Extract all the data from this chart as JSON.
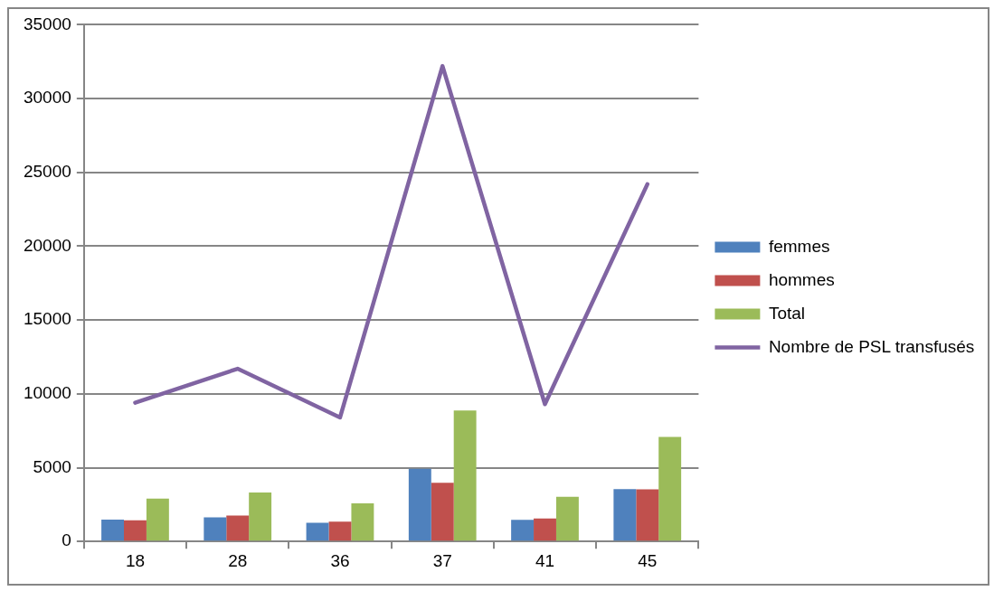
{
  "chart_data": {
    "type": "bar",
    "categories": [
      "18",
      "28",
      "36",
      "37",
      "41",
      "45"
    ],
    "series": [
      {
        "name": "femmes",
        "color": "#4f81bd",
        "values": [
          1480,
          1630,
          1270,
          4920,
          1460,
          3550
        ]
      },
      {
        "name": "hommes",
        "color": "#c0504d",
        "values": [
          1440,
          1750,
          1350,
          3970,
          1560,
          3530
        ]
      },
      {
        "name": "Total",
        "color": "#9bbb59",
        "values": [
          2910,
          3320,
          2580,
          8870,
          3020,
          7080
        ]
      },
      {
        "name": "Nombre de PSL transfusés",
        "type": "line",
        "color": "#8064a2",
        "values": [
          9400,
          11700,
          8400,
          32200,
          9300,
          24200
        ]
      }
    ],
    "ylim": [
      0,
      35000
    ],
    "yticks": [
      0,
      5000,
      10000,
      15000,
      20000,
      25000,
      30000,
      35000
    ],
    "grid": "y",
    "legend": "right",
    "marker": "none"
  }
}
